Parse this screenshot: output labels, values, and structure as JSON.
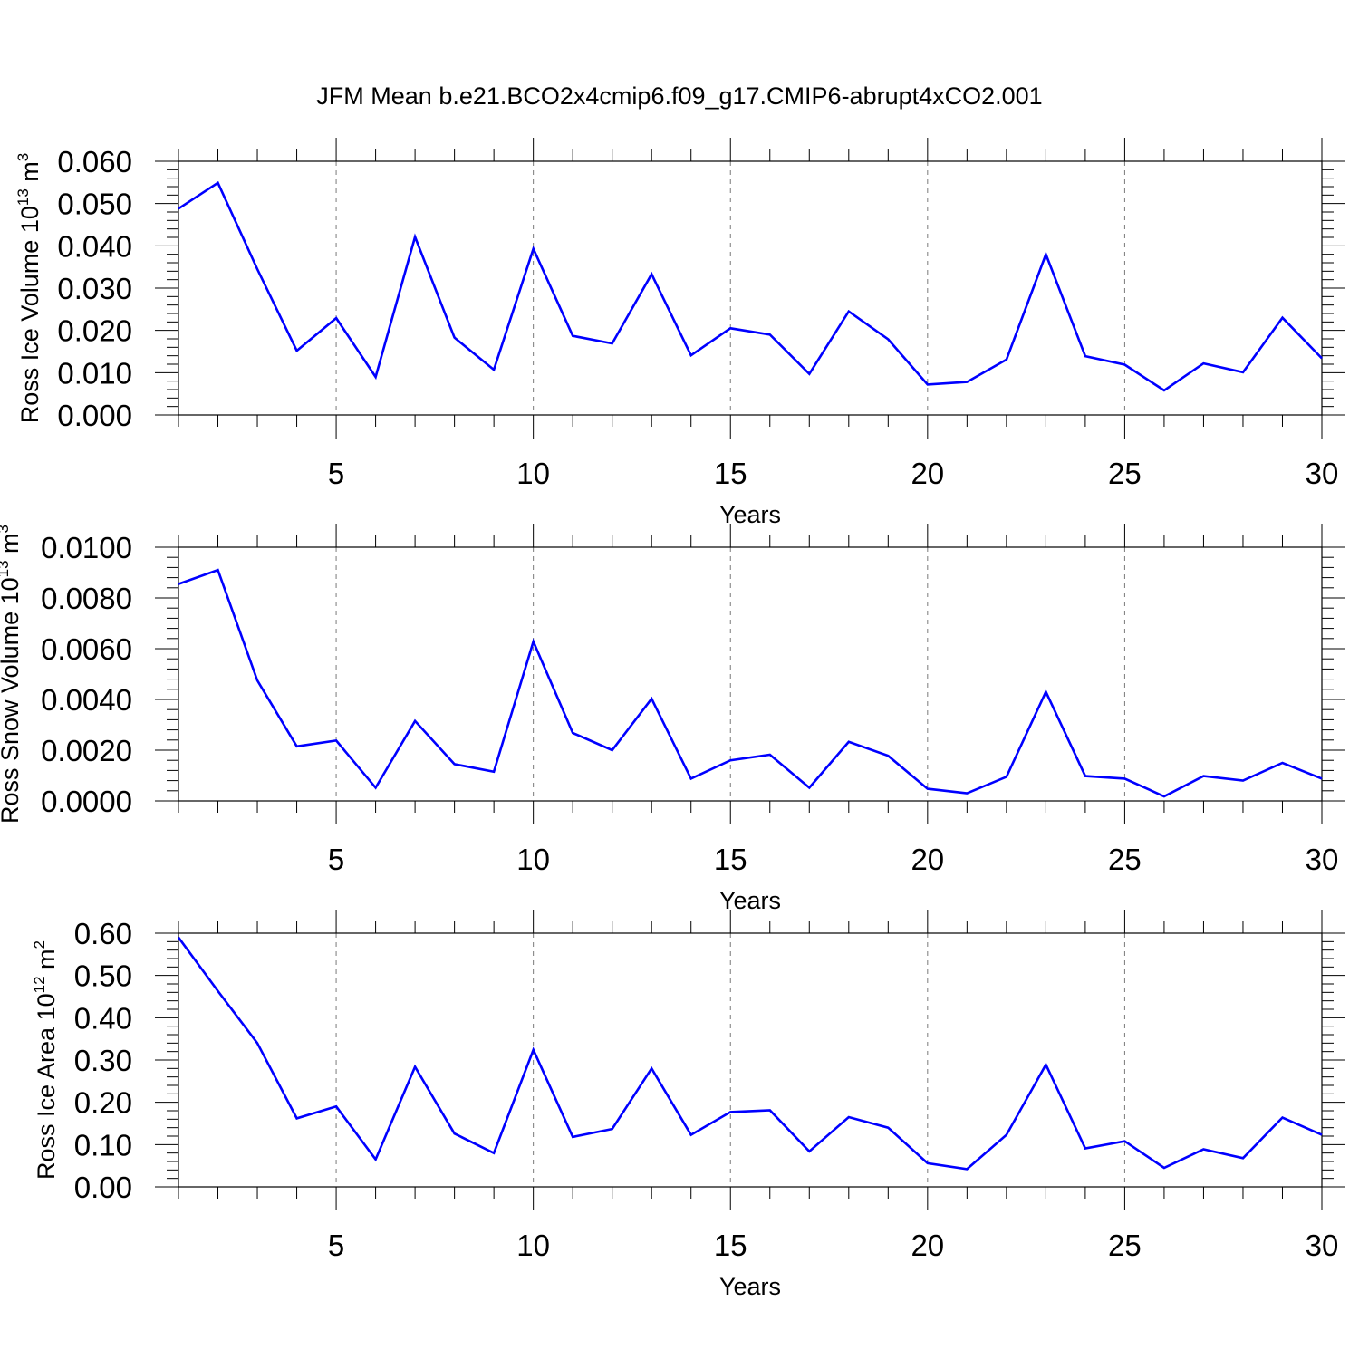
{
  "title": "JFM Mean b.e21.BCO2x4cmip6.f09_g17.CMIP6-abrupt4xCO2.001",
  "line_color": "#0000ff",
  "chart_data": [
    {
      "type": "line",
      "ylabel": "Ross Ice Volume 10",
      "ylabel_exp": "13",
      "ylabel_unit": " m",
      "ylabel_unit_exp": "3",
      "xlabel": "Years",
      "xlim": [
        1,
        30
      ],
      "ylim": [
        0,
        0.06
      ],
      "x_ticks": [
        5,
        10,
        15,
        20,
        25,
        30
      ],
      "y_ticks": [
        "0.000",
        "0.010",
        "0.020",
        "0.030",
        "0.040",
        "0.050",
        "0.060"
      ],
      "grid": "vertical dashed at major x ticks",
      "series": [
        {
          "x": [
            1,
            2,
            3,
            4,
            5,
            6,
            7,
            8,
            9,
            10,
            11,
            12,
            13,
            14,
            15,
            16,
            17,
            18,
            19,
            20,
            21,
            22,
            23,
            24,
            25,
            26,
            27,
            28,
            29,
            30
          ],
          "values": [
            0.0488,
            0.0549,
            0.0345,
            0.0152,
            0.0229,
            0.009,
            0.0421,
            0.0183,
            0.0107,
            0.0393,
            0.0187,
            0.0169,
            0.0333,
            0.0141,
            0.0205,
            0.019,
            0.0097,
            0.0245,
            0.0179,
            0.0072,
            0.0078,
            0.0131,
            0.038,
            0.0139,
            0.0119,
            0.0058,
            0.0122,
            0.0101,
            0.023,
            0.0134
          ]
        }
      ]
    },
    {
      "type": "line",
      "ylabel": "Ross Snow Volume 10",
      "ylabel_exp": "13",
      "ylabel_unit": " m",
      "ylabel_unit_exp": "3",
      "xlabel": "Years",
      "xlim": [
        1,
        30
      ],
      "ylim": [
        0,
        0.01
      ],
      "x_ticks": [
        5,
        10,
        15,
        20,
        25,
        30
      ],
      "y_ticks": [
        "0.0000",
        "0.0020",
        "0.0040",
        "0.0060",
        "0.0080",
        "0.0100"
      ],
      "grid": "vertical dashed at major x ticks",
      "series": [
        {
          "x": [
            1,
            2,
            3,
            4,
            5,
            6,
            7,
            8,
            9,
            10,
            11,
            12,
            13,
            14,
            15,
            16,
            17,
            18,
            19,
            20,
            21,
            22,
            23,
            24,
            25,
            26,
            27,
            28,
            29,
            30
          ],
          "values": [
            0.00855,
            0.0091,
            0.00475,
            0.00215,
            0.00238,
            0.00052,
            0.00315,
            0.00145,
            0.00115,
            0.00628,
            0.00268,
            0.002,
            0.00403,
            0.00088,
            0.0016,
            0.00182,
            0.00052,
            0.00233,
            0.00178,
            0.00048,
            0.0003,
            0.00095,
            0.0043,
            0.00098,
            0.00088,
            0.00018,
            0.00098,
            0.0008,
            0.0015,
            0.00088
          ]
        }
      ]
    },
    {
      "type": "line",
      "ylabel": "Ross Ice Area 10",
      "ylabel_exp": "12",
      "ylabel_unit": " m",
      "ylabel_unit_exp": "2",
      "xlabel": "Years",
      "xlim": [
        1,
        30
      ],
      "ylim": [
        0,
        0.6
      ],
      "x_ticks": [
        5,
        10,
        15,
        20,
        25,
        30
      ],
      "y_ticks": [
        "0.00",
        "0.10",
        "0.20",
        "0.30",
        "0.40",
        "0.50",
        "0.60"
      ],
      "grid": "vertical dashed at major x ticks",
      "series": [
        {
          "x": [
            1,
            2,
            3,
            4,
            5,
            6,
            7,
            8,
            9,
            10,
            11,
            12,
            13,
            14,
            15,
            16,
            17,
            18,
            19,
            20,
            21,
            22,
            23,
            24,
            25,
            26,
            27,
            28,
            29,
            30
          ],
          "values": [
            0.59,
            0.463,
            0.34,
            0.162,
            0.19,
            0.065,
            0.284,
            0.126,
            0.08,
            0.324,
            0.118,
            0.137,
            0.28,
            0.123,
            0.177,
            0.181,
            0.084,
            0.165,
            0.14,
            0.056,
            0.042,
            0.123,
            0.289,
            0.091,
            0.108,
            0.045,
            0.089,
            0.068,
            0.164,
            0.123
          ]
        }
      ]
    }
  ]
}
